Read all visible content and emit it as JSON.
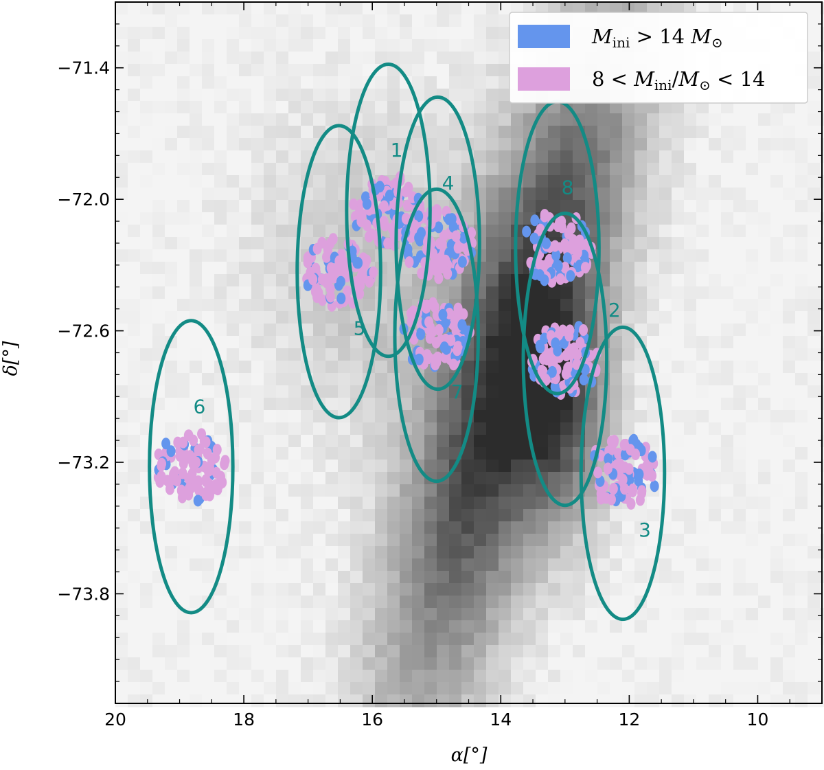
{
  "chart_data": {
    "type": "scatter",
    "title": "",
    "xlabel": "α[°]",
    "ylabel": "δ[°]",
    "xlim": [
      20,
      9
    ],
    "ylim": [
      -74.3,
      -71.1
    ],
    "x_ticks": [
      20,
      18,
      16,
      14,
      12,
      10
    ],
    "x_tick_labels": [
      "20",
      "18",
      "16",
      "14",
      "12",
      "10"
    ],
    "y_ticks": [
      -71.4,
      -72.0,
      -72.6,
      -73.2,
      -73.8
    ],
    "y_tick_labels": [
      "−71.4",
      "−72.0",
      "−72.6",
      "−73.2",
      "−73.8"
    ],
    "grid": false,
    "legend_position": "top-right",
    "background": "grayscale 2D density histogram of stars",
    "series": [
      {
        "name": "M_ini > 14 M_⊙",
        "legend_parts": [
          "M",
          "ini",
          " > 14 ",
          "M",
          "⊙"
        ],
        "color": "#6495ED"
      },
      {
        "name": "8 < M_ini/M_⊙ < 14",
        "legend_parts": [
          "8 < ",
          "M",
          "ini",
          "/",
          "M",
          "⊙",
          " < 14"
        ],
        "color": "#DDA0DD"
      }
    ],
    "regions": [
      {
        "label": "1",
        "ra": 15.75,
        "dec": -72.05,
        "radius_deg": 0.68
      },
      {
        "label": "2",
        "ra": 13.0,
        "dec": -72.73,
        "radius_deg": 0.68
      },
      {
        "label": "3",
        "ra": 12.1,
        "dec": -73.25,
        "radius_deg": 0.68
      },
      {
        "label": "4",
        "ra": 14.98,
        "dec": -72.2,
        "radius_deg": 0.68
      },
      {
        "label": "5",
        "ra": 16.52,
        "dec": -72.33,
        "radius_deg": 0.68
      },
      {
        "label": "6",
        "ra": 18.82,
        "dec": -73.22,
        "radius_deg": 0.68
      },
      {
        "label": "7",
        "ra": 15.0,
        "dec": -72.62,
        "radius_deg": 0.68
      },
      {
        "label": "8",
        "ra": 13.12,
        "dec": -72.22,
        "radius_deg": 0.68
      }
    ],
    "region_color": "#138B85"
  }
}
